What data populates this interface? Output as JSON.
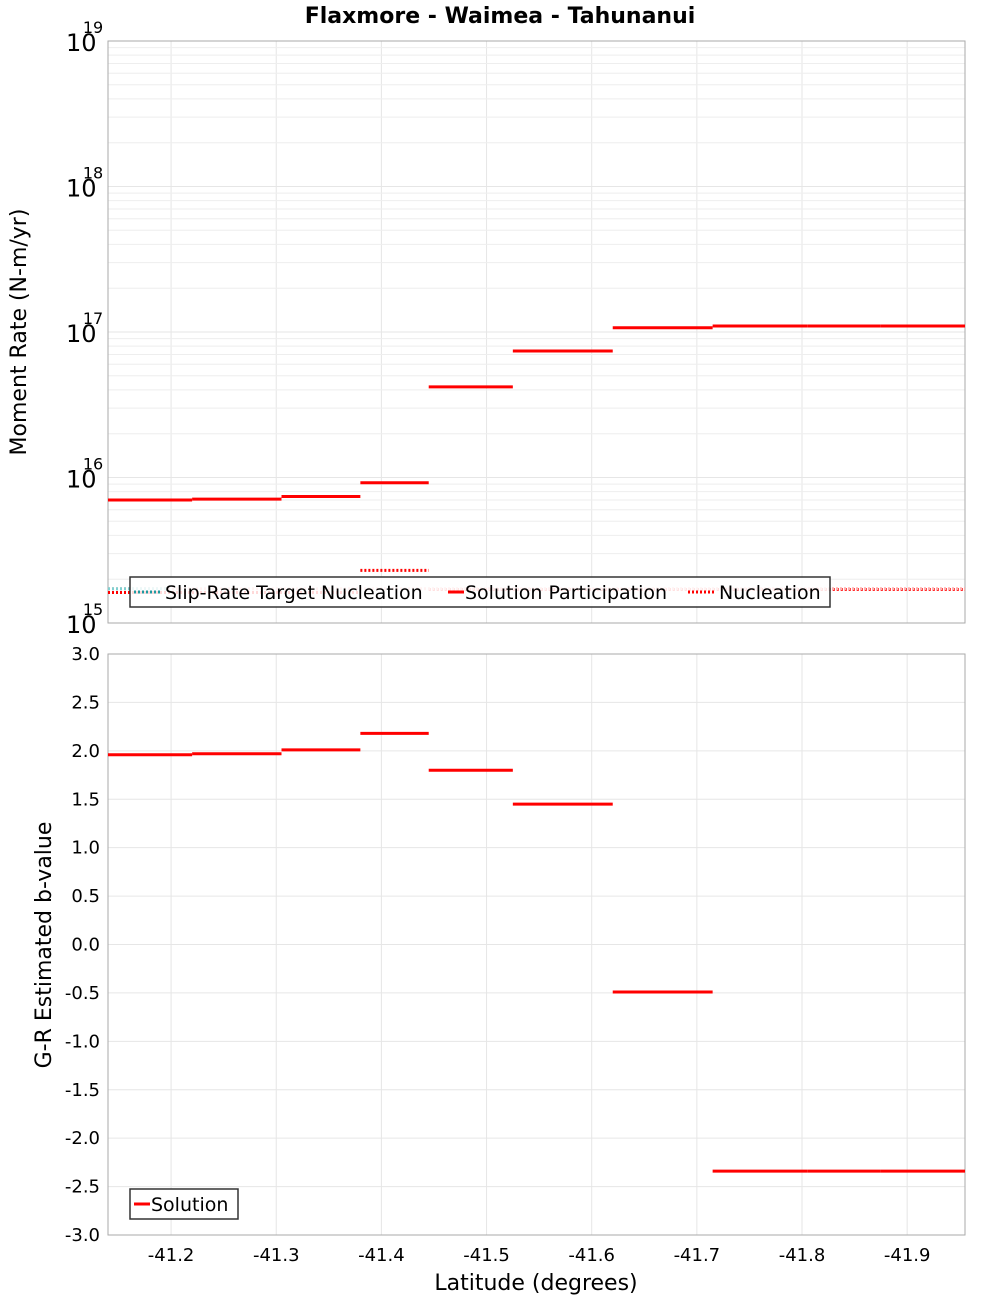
{
  "colors": {
    "solution": "#ff0000",
    "target": "#1f9aa0",
    "target_light": "#7fd0d0",
    "target_pink": "#ffb0b0",
    "nucleation": "#ff0000"
  },
  "chart_data": [
    {
      "type": "line",
      "title": "Flaxmore - Waimea - Tahunanui",
      "xlabel": "",
      "ylabel": "Moment Rate (N-m/yr)",
      "yscale": "log",
      "ylim": [
        1000000000000000.0,
        1e+19
      ],
      "xlim": [
        -41.14,
        -41.955
      ],
      "y_ticks": [
        {
          "base": "10",
          "exp": "15",
          "value": 1000000000000000.0
        },
        {
          "base": "10",
          "exp": "16",
          "value": 1e+16
        },
        {
          "base": "10",
          "exp": "17",
          "value": 1e+17
        },
        {
          "base": "10",
          "exp": "18",
          "value": 1e+18
        },
        {
          "base": "10",
          "exp": "19",
          "value": 1e+19
        }
      ],
      "legend": {
        "position": "bottom-left",
        "entries": [
          {
            "label": "Slip-Rate Target Nucleation",
            "series": "target"
          },
          {
            "label": "Solution Participation",
            "series": "participation"
          },
          {
            "label": "Nucleation",
            "series": "nucleation"
          }
        ]
      },
      "series": [
        {
          "name": "Solution Participation",
          "key": "participation",
          "style": "solid",
          "segments": [
            {
              "x0": -41.14,
              "x1": -41.22,
              "y": 7000000000000000.0
            },
            {
              "x0": -41.22,
              "x1": -41.305,
              "y": 7100000000000000.0
            },
            {
              "x0": -41.305,
              "x1": -41.38,
              "y": 7400000000000000.0
            },
            {
              "x0": -41.38,
              "x1": -41.445,
              "y": 9200000000000000.0
            },
            {
              "x0": -41.445,
              "x1": -41.525,
              "y": 4.2e+16
            },
            {
              "x0": -41.525,
              "x1": -41.62,
              "y": 7.4e+16
            },
            {
              "x0": -41.62,
              "x1": -41.715,
              "y": 1.07e+17
            },
            {
              "x0": -41.715,
              "x1": -41.805,
              "y": 1.1e+17
            },
            {
              "x0": -41.805,
              "x1": -41.875,
              "y": 1.1e+17
            },
            {
              "x0": -41.875,
              "x1": -41.955,
              "y": 1.1e+17
            }
          ]
        },
        {
          "name": "Nucleation",
          "key": "nucleation",
          "style": "dotted",
          "segments": [
            {
              "x0": -41.14,
              "x1": -41.38,
              "y": 1620000000000000.0
            },
            {
              "x0": -41.38,
              "x1": -41.445,
              "y": 2300000000000000.0
            },
            {
              "x0": -41.445,
              "x1": -41.955,
              "y": 1700000000000000.0
            }
          ]
        },
        {
          "name": "Slip-Rate Target Nucleation",
          "key": "target",
          "style": "dotted",
          "segments": [
            {
              "x0": -41.14,
              "x1": -41.955,
              "y": 1720000000000000.0
            }
          ]
        }
      ]
    },
    {
      "type": "line",
      "title": "",
      "xlabel": "Latitude (degrees)",
      "ylabel": "G-R Estimated b-value",
      "ylim": [
        -3.0,
        3.0
      ],
      "xlim": [
        -41.14,
        -41.955
      ],
      "y_ticks": [
        "3.0",
        "2.5",
        "2.0",
        "1.5",
        "1.0",
        "0.5",
        "0.0",
        "-0.5",
        "-1.0",
        "-1.5",
        "-2.0",
        "-2.5",
        "-3.0"
      ],
      "x_ticks": [
        "-41.2",
        "-41.3",
        "-41.4",
        "-41.5",
        "-41.6",
        "-41.7",
        "-41.8",
        "-41.9"
      ],
      "legend": {
        "position": "bottom-left",
        "entries": [
          {
            "label": "Solution",
            "series": "solution"
          }
        ]
      },
      "series": [
        {
          "name": "Solution",
          "key": "solution",
          "style": "solid",
          "segments": [
            {
              "x0": -41.14,
              "x1": -41.22,
              "y": 1.96
            },
            {
              "x0": -41.22,
              "x1": -41.305,
              "y": 1.97
            },
            {
              "x0": -41.305,
              "x1": -41.38,
              "y": 2.01
            },
            {
              "x0": -41.38,
              "x1": -41.445,
              "y": 2.18
            },
            {
              "x0": -41.445,
              "x1": -41.525,
              "y": 1.8
            },
            {
              "x0": -41.525,
              "x1": -41.62,
              "y": 1.45
            },
            {
              "x0": -41.62,
              "x1": -41.715,
              "y": -0.49
            },
            {
              "x0": -41.715,
              "x1": -41.805,
              "y": -2.34
            },
            {
              "x0": -41.805,
              "x1": -41.875,
              "y": -2.34
            },
            {
              "x0": -41.875,
              "x1": -41.955,
              "y": -2.34
            }
          ]
        }
      ]
    }
  ]
}
